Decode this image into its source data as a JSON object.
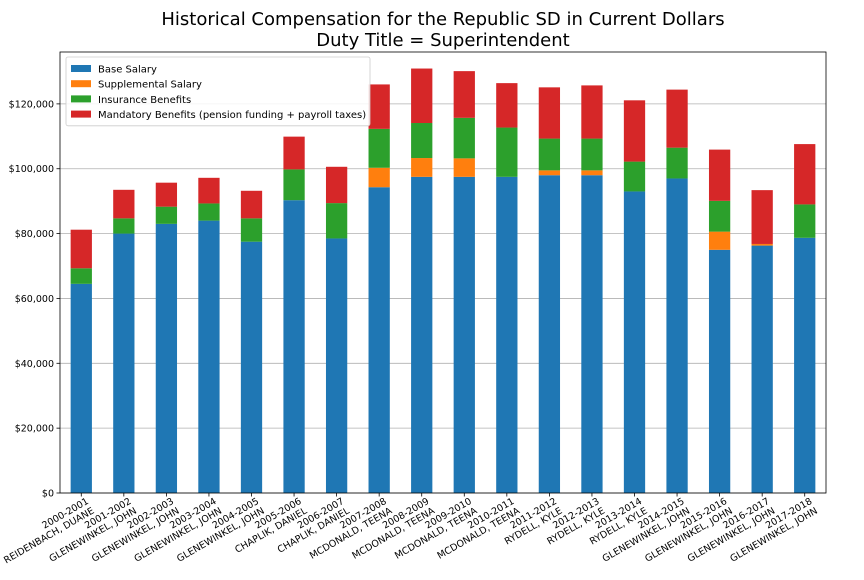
{
  "chart_data": {
    "type": "bar",
    "stacked": true,
    "title": "Historical Compensation for the Republic SD in Current Dollars",
    "subtitle": "Duty Title = Superintendent",
    "xlabel": "",
    "ylabel": "",
    "ylim": [
      0,
      136000
    ],
    "yticks": [
      0,
      20000,
      40000,
      60000,
      80000,
      100000,
      120000
    ],
    "ytick_labels": [
      "$0",
      "$20,000",
      "$40,000",
      "$60,000",
      "$80,000",
      "$100,000",
      "$120,000"
    ],
    "grid": "horizontal",
    "legend_position": "top-left",
    "categories": [
      [
        "2000-2001",
        "REIDENBACH, DUANE"
      ],
      [
        "2001-2002",
        "GLENEWINKEL, JOHN"
      ],
      [
        "2002-2003",
        "GLENEWINKEL, JOHN"
      ],
      [
        "2003-2004",
        "GLENEWINKEL, JOHN"
      ],
      [
        "2004-2005",
        "GLENEWINKEL, JOHN"
      ],
      [
        "2005-2006",
        "CHAPLIK, DANIEL"
      ],
      [
        "2006-2007",
        "CHAPLIK, DANIEL"
      ],
      [
        "2007-2008",
        "MCDONALD, TEENA"
      ],
      [
        "2008-2009",
        "MCDONALD, TEENA"
      ],
      [
        "2009-2010",
        "MCDONALD, TEENA"
      ],
      [
        "2010-2011",
        "MCDONALD, TEENA"
      ],
      [
        "2011-2012",
        "RYDELL, KYLE"
      ],
      [
        "2012-2013",
        "RYDELL, KYLE"
      ],
      [
        "2013-2014",
        "RYDELL, KYLE"
      ],
      [
        "2014-2015",
        "GLENEWINKEL, JOHN"
      ],
      [
        "2015-2016",
        "GLENEWINKEL, JOHN"
      ],
      [
        "2016-2017",
        "GLENEWINKEL, JOHN"
      ],
      [
        "2017-2018",
        "GLENEWINKEL, JOHN"
      ]
    ],
    "series": [
      {
        "name": "Base Salary",
        "color": "#1f77b4",
        "values": [
          64500,
          80000,
          83000,
          84000,
          77500,
          90300,
          78500,
          94300,
          97500,
          97500,
          97500,
          98000,
          98000,
          93000,
          97000,
          75000,
          76300,
          78700
        ]
      },
      {
        "name": "Supplemental Salary",
        "color": "#ff7f0e",
        "values": [
          0,
          0,
          0,
          0,
          0,
          0,
          0,
          6000,
          5800,
          5700,
          0,
          1500,
          1500,
          0,
          0,
          5600,
          500,
          0
        ]
      },
      {
        "name": "Insurance Benefits",
        "color": "#2ca02c",
        "values": [
          4800,
          4700,
          5300,
          5300,
          7200,
          9500,
          10900,
          12000,
          10800,
          12500,
          15200,
          9800,
          9800,
          9200,
          9500,
          9500,
          0,
          10300
        ]
      },
      {
        "name": "Mandatory Benefits (pension funding + payroll taxes)",
        "color": "#d62728",
        "values": [
          11900,
          8800,
          7400,
          7900,
          8500,
          10100,
          11200,
          13700,
          16800,
          14400,
          13700,
          15800,
          16400,
          18900,
          17900,
          15800,
          16600,
          18600
        ]
      }
    ]
  }
}
